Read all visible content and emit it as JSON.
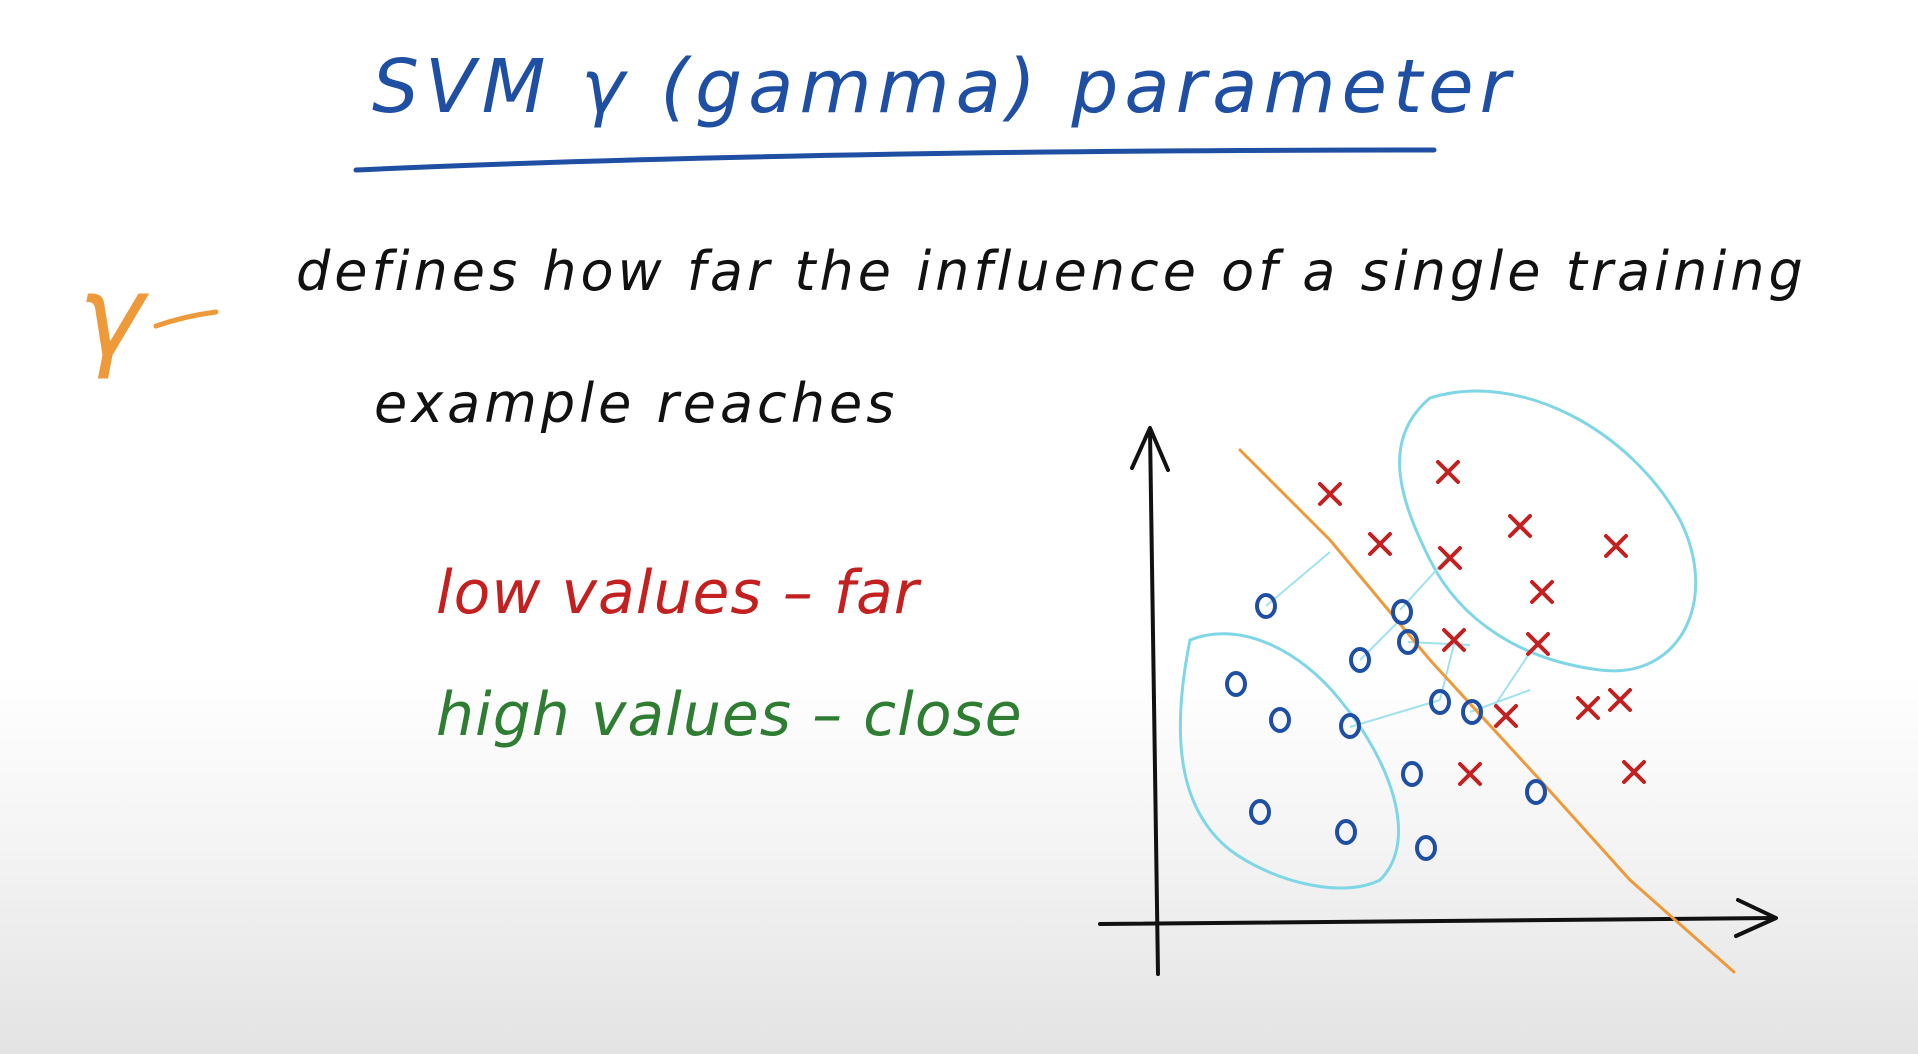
{
  "title": "SVM  γ (gamma)  parameter",
  "gamma_symbol": "γ",
  "definition": {
    "line1": "defines how far the influence of a single training",
    "line2": "example reaches"
  },
  "low_values": "low values – far",
  "high_values": "high values – close",
  "colors": {
    "title": "#1f4fa3",
    "gamma": "#ee9a3a",
    "text": "#111111",
    "low": "#c42020",
    "high": "#2e7d32",
    "cluster": "#7fd6e6",
    "circle_points": "#1f4fa3",
    "cross_points": "#c42020",
    "boundary": "#ee9a3a"
  },
  "plot": {
    "circle_marker": "o",
    "cross_marker": "x",
    "circle_points_count": 14,
    "cross_points_count": 14
  }
}
